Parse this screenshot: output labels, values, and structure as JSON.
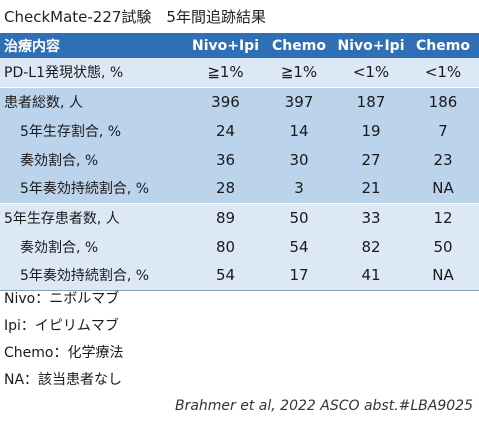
{
  "title": "CheckMate-227試験　5年間追跡結果",
  "table": {
    "headers": [
      "治療内容",
      "Nivo+Ipi",
      "Chemo",
      "Nivo+Ipi",
      "Chemo"
    ],
    "rows": [
      [
        "PD-L1発現状態, %",
        "≧1%",
        "≧1%",
        "<1%",
        "<1%"
      ],
      [
        "患者総数, 人",
        "396",
        "397",
        "187",
        "186"
      ],
      [
        "5年生存割合, %",
        "24",
        "14",
        "19",
        "7"
      ],
      [
        "奏効割合, %",
        "36",
        "30",
        "27",
        "23"
      ],
      [
        "5年奏効持続割合, %",
        "28",
        "3",
        "21",
        "NA"
      ],
      [
        "5年生存患者数, 人",
        "89",
        "50",
        "33",
        "12"
      ],
      [
        "奏効割合, %",
        "80",
        "54",
        "82",
        "50"
      ],
      [
        "5年奏効持続割合, %",
        "54",
        "17",
        "41",
        "NA"
      ]
    ]
  },
  "notes": [
    "Nivo：ニボルマブ",
    "Ipi：イピリムマブ",
    "Chemo：化学療法",
    "NA：該当患者なし"
  ],
  "citation": "Brahmer et al, 2022 ASCO abst.#LBA9025",
  "colors": {
    "header_bg": "#2f6fb6",
    "row_light": "#dce8f5",
    "row_mid": "#bcd3ec"
  }
}
